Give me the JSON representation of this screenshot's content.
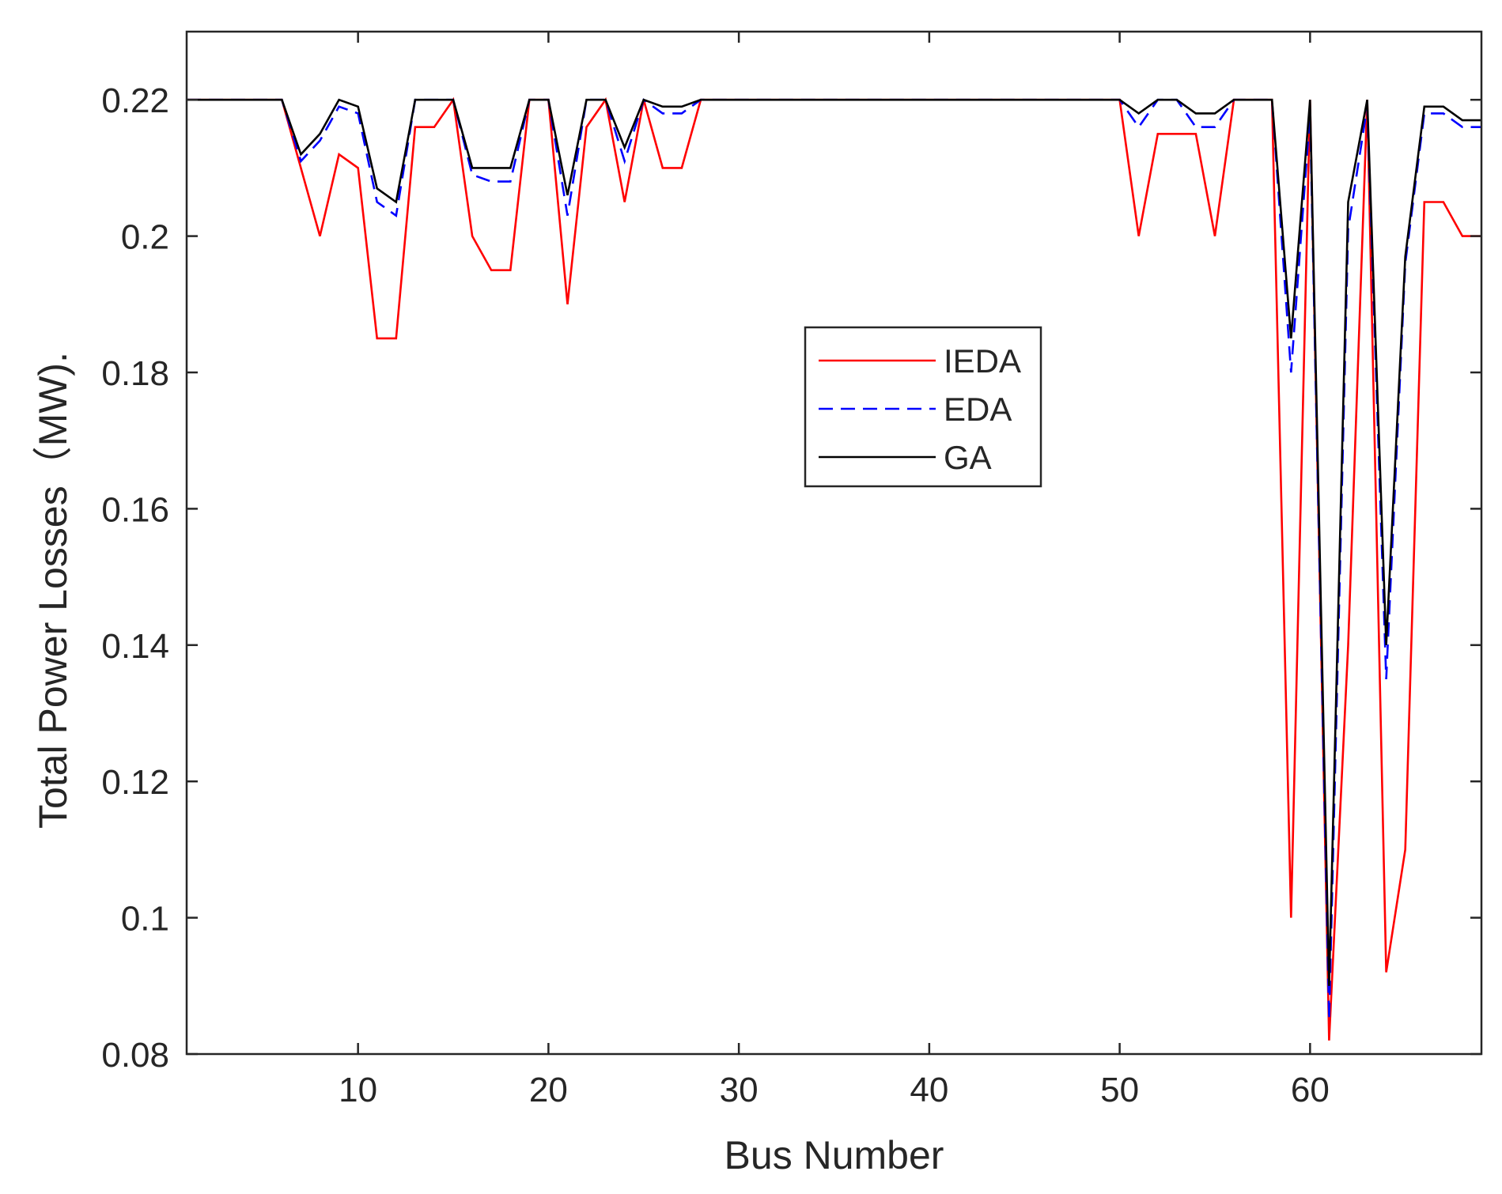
{
  "chart_data": {
    "type": "line",
    "title": "",
    "xlabel": "Bus Number",
    "ylabel": "Total Power Losses（MW).",
    "xlim": [
      1,
      69
    ],
    "ylim": [
      0.08,
      0.23
    ],
    "xticks": [
      10,
      20,
      30,
      40,
      50,
      60
    ],
    "xtick_labels": [
      "10",
      "20",
      "30",
      "40",
      "50",
      "60"
    ],
    "yticks": [
      0.08,
      0.1,
      0.12,
      0.14,
      0.16,
      0.18,
      0.2,
      0.22
    ],
    "ytick_labels": [
      "0.08",
      "0.1",
      "0.12",
      "0.14",
      "0.16",
      "0.18",
      "0.2",
      "0.22"
    ],
    "grid": false,
    "legend_position": "center",
    "x": [
      1,
      2,
      3,
      4,
      5,
      6,
      7,
      8,
      9,
      10,
      11,
      12,
      13,
      14,
      15,
      16,
      17,
      18,
      19,
      20,
      21,
      22,
      23,
      24,
      25,
      26,
      27,
      28,
      29,
      30,
      31,
      32,
      33,
      34,
      35,
      36,
      37,
      38,
      39,
      40,
      41,
      42,
      43,
      44,
      45,
      46,
      47,
      48,
      49,
      50,
      51,
      52,
      53,
      54,
      55,
      56,
      57,
      58,
      59,
      60,
      61,
      62,
      63,
      64,
      65,
      66,
      67,
      68,
      69
    ],
    "series": [
      {
        "name": "IEDA",
        "color": "#ff0000",
        "style": "solid",
        "values": [
          0.22,
          0.22,
          0.22,
          0.22,
          0.22,
          0.22,
          0.21,
          0.2,
          0.212,
          0.21,
          0.185,
          0.185,
          0.216,
          0.216,
          0.22,
          0.2,
          0.195,
          0.195,
          0.22,
          0.22,
          0.19,
          0.216,
          0.22,
          0.205,
          0.22,
          0.21,
          0.21,
          0.22,
          0.22,
          0.22,
          0.22,
          0.22,
          0.22,
          0.22,
          0.22,
          0.22,
          0.22,
          0.22,
          0.22,
          0.22,
          0.22,
          0.22,
          0.22,
          0.22,
          0.22,
          0.22,
          0.22,
          0.22,
          0.22,
          0.22,
          0.2,
          0.215,
          0.215,
          0.215,
          0.2,
          0.22,
          0.22,
          0.22,
          0.1,
          0.22,
          0.082,
          0.14,
          0.22,
          0.092,
          0.11,
          0.205,
          0.205,
          0.2,
          0.2
        ]
      },
      {
        "name": "EDA",
        "color": "#0000ff",
        "style": "dashed",
        "values": [
          0.22,
          0.22,
          0.22,
          0.22,
          0.22,
          0.22,
          0.211,
          0.214,
          0.219,
          0.218,
          0.205,
          0.203,
          0.22,
          0.22,
          0.22,
          0.209,
          0.208,
          0.208,
          0.22,
          0.22,
          0.203,
          0.22,
          0.22,
          0.211,
          0.22,
          0.218,
          0.218,
          0.22,
          0.22,
          0.22,
          0.22,
          0.22,
          0.22,
          0.22,
          0.22,
          0.22,
          0.22,
          0.22,
          0.22,
          0.22,
          0.22,
          0.22,
          0.22,
          0.22,
          0.22,
          0.22,
          0.22,
          0.22,
          0.22,
          0.22,
          0.216,
          0.22,
          0.22,
          0.216,
          0.216,
          0.22,
          0.22,
          0.22,
          0.18,
          0.218,
          0.085,
          0.201,
          0.219,
          0.135,
          0.196,
          0.218,
          0.218,
          0.216,
          0.216
        ]
      },
      {
        "name": "GA",
        "color": "#000000",
        "style": "solid",
        "values": [
          0.22,
          0.22,
          0.22,
          0.22,
          0.22,
          0.22,
          0.212,
          0.215,
          0.22,
          0.219,
          0.207,
          0.205,
          0.22,
          0.22,
          0.22,
          0.21,
          0.21,
          0.21,
          0.22,
          0.22,
          0.206,
          0.22,
          0.22,
          0.213,
          0.22,
          0.219,
          0.219,
          0.22,
          0.22,
          0.22,
          0.22,
          0.22,
          0.22,
          0.22,
          0.22,
          0.22,
          0.22,
          0.22,
          0.22,
          0.22,
          0.22,
          0.22,
          0.22,
          0.22,
          0.22,
          0.22,
          0.22,
          0.22,
          0.22,
          0.22,
          0.218,
          0.22,
          0.22,
          0.218,
          0.218,
          0.22,
          0.22,
          0.22,
          0.185,
          0.22,
          0.09,
          0.205,
          0.22,
          0.14,
          0.197,
          0.219,
          0.219,
          0.217,
          0.217
        ]
      }
    ]
  }
}
